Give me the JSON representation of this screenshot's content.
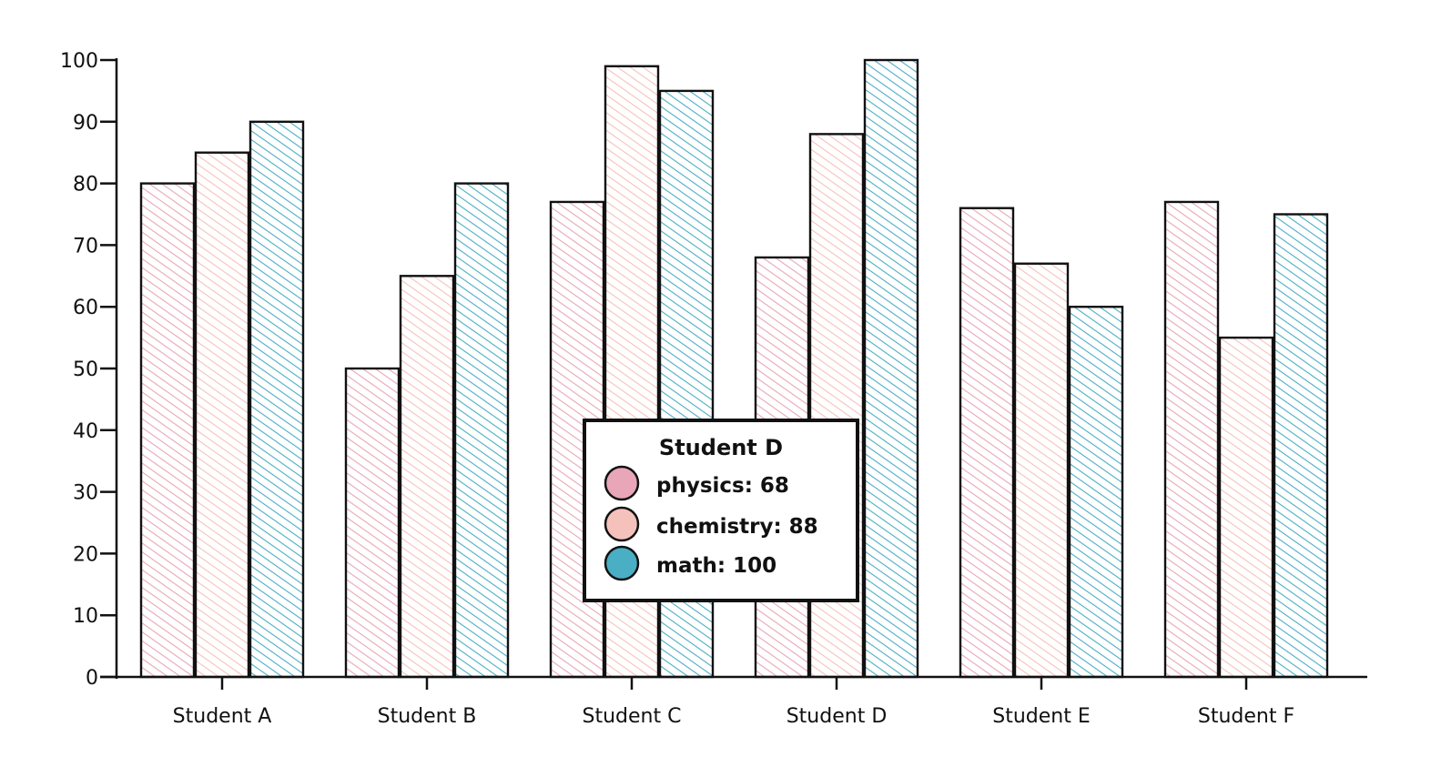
{
  "chart_data": {
    "type": "bar",
    "title": "",
    "xlabel": "",
    "ylabel": "",
    "ylim": [
      0,
      100
    ],
    "yticks": [
      0,
      10,
      20,
      30,
      40,
      50,
      60,
      70,
      80,
      90,
      100
    ],
    "categories": [
      "Student A",
      "Student B",
      "Student C",
      "Student D",
      "Student E",
      "Student F"
    ],
    "series": [
      {
        "name": "physics",
        "color": "#e8a6b8",
        "values": [
          80,
          50,
          77,
          68,
          76,
          77
        ]
      },
      {
        "name": "chemistry",
        "color": "#f5c2bb",
        "values": [
          85,
          65,
          99,
          88,
          67,
          55
        ]
      },
      {
        "name": "math",
        "color": "#4aaec4",
        "values": [
          90,
          80,
          95,
          100,
          60,
          75
        ]
      }
    ],
    "tooltip": {
      "title": "Student D",
      "items": [
        {
          "label": "physics: 68",
          "color": "#e8a6b8"
        },
        {
          "label": "chemistry: 88",
          "color": "#f5c2bb"
        },
        {
          "label": "math: 100",
          "color": "#4aaec4"
        }
      ]
    }
  }
}
